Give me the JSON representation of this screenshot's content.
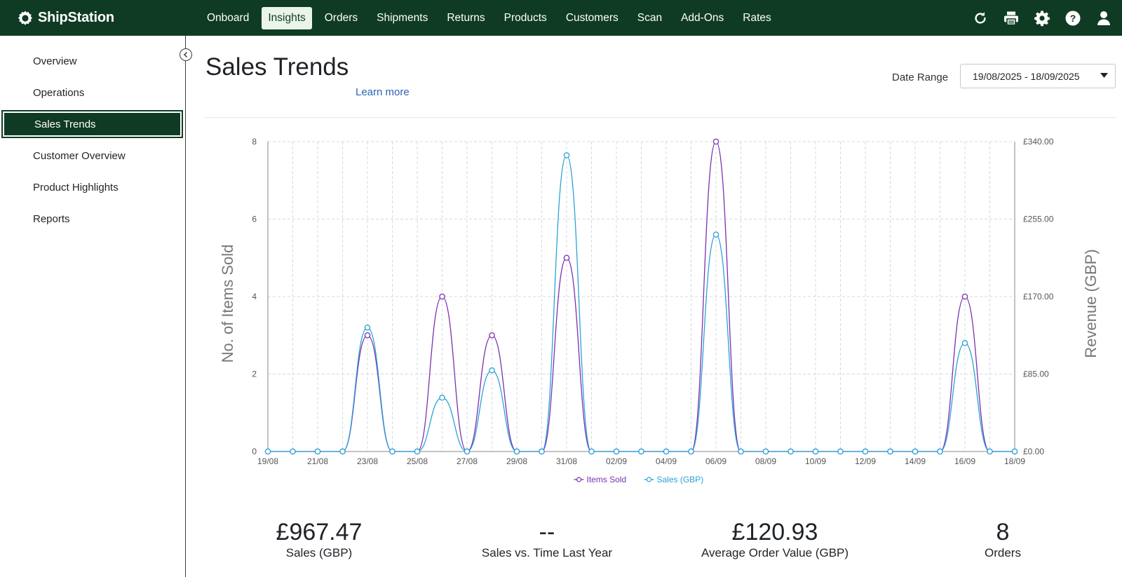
{
  "app": {
    "name": "ShipStation"
  },
  "nav": {
    "items": [
      {
        "label": "Onboard",
        "active": false
      },
      {
        "label": "Insights",
        "active": true
      },
      {
        "label": "Orders",
        "active": false
      },
      {
        "label": "Shipments",
        "active": false
      },
      {
        "label": "Returns",
        "active": false
      },
      {
        "label": "Products",
        "active": false
      },
      {
        "label": "Customers",
        "active": false
      },
      {
        "label": "Scan",
        "active": false
      },
      {
        "label": "Add-Ons",
        "active": false
      },
      {
        "label": "Rates",
        "active": false
      }
    ],
    "icons": [
      "refresh-icon",
      "printer-icon",
      "gear-icon",
      "help-icon",
      "user-icon"
    ]
  },
  "sidebar": {
    "items": [
      {
        "label": "Overview",
        "active": false
      },
      {
        "label": "Operations",
        "active": false
      },
      {
        "label": "Sales Trends",
        "active": true
      },
      {
        "label": "Customer Overview",
        "active": false
      },
      {
        "label": "Product Highlights",
        "active": false
      },
      {
        "label": "Reports",
        "active": false
      }
    ]
  },
  "main": {
    "title": "Sales Trends",
    "learn_more": "Learn more",
    "date_range_label": "Date Range",
    "date_range_value": "19/08/2025 - 18/09/2025"
  },
  "chart_data": {
    "type": "line",
    "x": [
      "19/08",
      "20/08",
      "21/08",
      "22/08",
      "23/08",
      "24/08",
      "25/08",
      "26/08",
      "27/08",
      "28/08",
      "29/08",
      "30/08",
      "31/08",
      "01/09",
      "02/09",
      "03/09",
      "04/09",
      "05/09",
      "06/09",
      "07/09",
      "08/09",
      "09/09",
      "10/09",
      "11/09",
      "12/09",
      "13/09",
      "14/09",
      "15/09",
      "16/09",
      "17/09",
      "18/09"
    ],
    "x_tick_labels": [
      "19/08",
      "21/08",
      "23/08",
      "25/08",
      "27/08",
      "29/08",
      "31/08",
      "02/09",
      "04/09",
      "06/09",
      "08/09",
      "10/09",
      "12/09",
      "14/09",
      "16/09",
      "18/09"
    ],
    "ylabel": "No. of Items Sold",
    "y2label": "Revenue (GBP)",
    "ylim": [
      0,
      8
    ],
    "y_ticks": [
      "0",
      "2",
      "4",
      "6",
      "8"
    ],
    "y2lim": [
      0,
      340
    ],
    "y2_ticks": [
      "£0.00",
      "£85.00",
      "£170.00",
      "£255.00",
      "£340.00"
    ],
    "grid": true,
    "legend_position": "bottom-center",
    "series": [
      {
        "name": "Items Sold",
        "axis": "left",
        "color": "#7b2fb0",
        "values": [
          0,
          0,
          0,
          0,
          3,
          0,
          0,
          4,
          0,
          3,
          0,
          0,
          5,
          0,
          0,
          0,
          0,
          0,
          8,
          0,
          0,
          0,
          0,
          0,
          0,
          0,
          0,
          0,
          4,
          0,
          0
        ]
      },
      {
        "name": "Sales (GBP)",
        "axis": "right",
        "color": "#2aa2d8",
        "values": [
          0,
          0,
          0,
          0,
          136,
          0,
          0,
          59,
          0,
          89,
          0,
          0,
          325,
          0,
          0,
          0,
          0,
          0,
          238,
          0,
          0,
          0,
          0,
          0,
          0,
          0,
          0,
          0,
          119,
          0,
          0
        ]
      }
    ]
  },
  "kpis": [
    {
      "value": "£967.47",
      "label": "Sales (GBP)"
    },
    {
      "value": "--",
      "label": "Sales vs. Time Last Year"
    },
    {
      "value": "£120.93",
      "label": "Average Order Value (GBP)"
    },
    {
      "value": "8",
      "label": "Orders"
    }
  ]
}
